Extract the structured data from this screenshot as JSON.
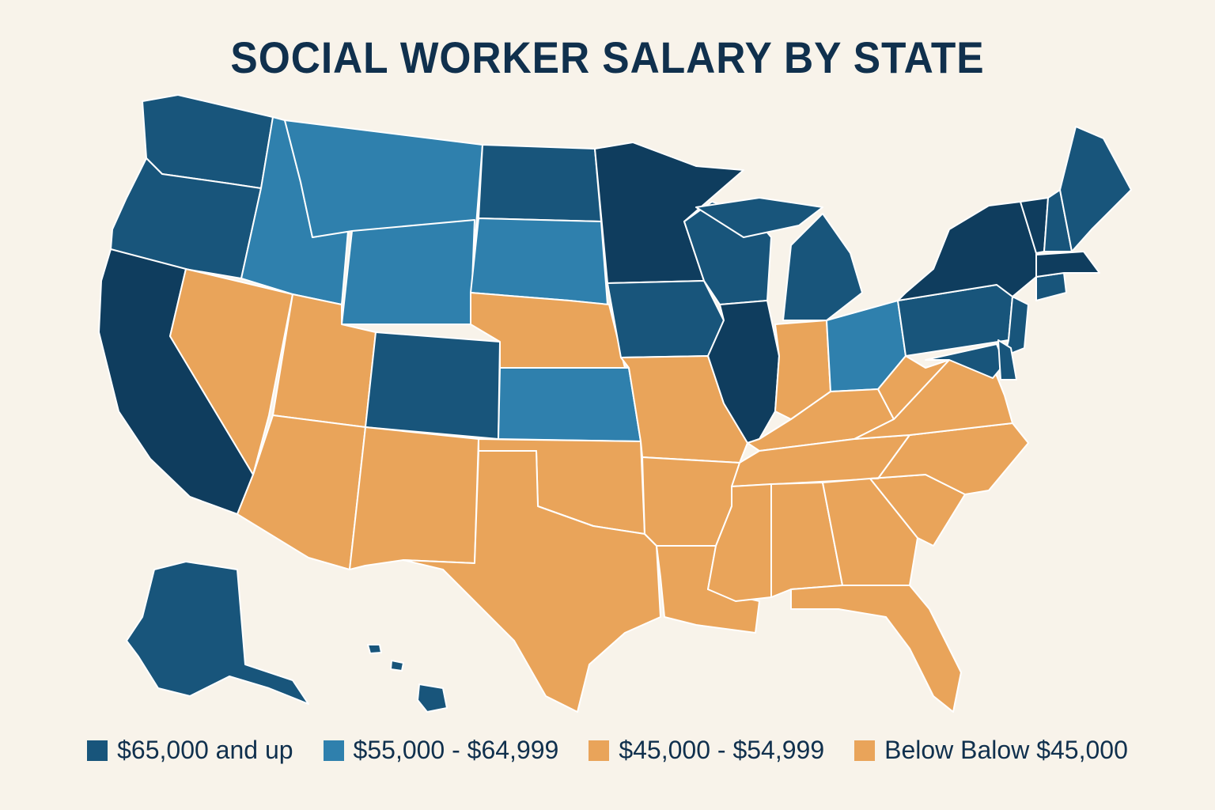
{
  "title": "SOCIAL WORKER SALARY BY STATE",
  "colors": {
    "background": "#f8f3ea",
    "tier_65k_plus": "#18557b",
    "tier_65k_plus_dark": "#0f3d5e",
    "tier_55k_65k": "#2f80ad",
    "tier_45k_55k": "#e9a45a",
    "tier_below_45k": "#e9a45a"
  },
  "legend": [
    {
      "label": "$65,000 and up",
      "color": "#18557b"
    },
    {
      "label": "$55,000 - $64,999",
      "color": "#2f80ad"
    },
    {
      "label": "$45,000 - $54,999",
      "color": "#e9a45a"
    },
    {
      "label": "Below Balow $45,000",
      "color": "#e9a45a"
    }
  ],
  "states": [
    {
      "code": "WA",
      "tier": "$65,000 and up"
    },
    {
      "code": "OR",
      "tier": "$65,000 and up"
    },
    {
      "code": "CA",
      "tier": "$65,000 and up"
    },
    {
      "code": "ID",
      "tier": "$55,000 - $64,999"
    },
    {
      "code": "MT",
      "tier": "$55,000 - $64,999"
    },
    {
      "code": "WY",
      "tier": "$55,000 - $64,999"
    },
    {
      "code": "ND",
      "tier": "$65,000 and up"
    },
    {
      "code": "SD",
      "tier": "$55,000 - $64,999"
    },
    {
      "code": "NE",
      "tier": "$45,000 - $54,999"
    },
    {
      "code": "KS",
      "tier": "$55,000 - $64,999"
    },
    {
      "code": "NV",
      "tier": "$45,000 - $54,999"
    },
    {
      "code": "UT",
      "tier": "$45,000 - $54,999"
    },
    {
      "code": "CO",
      "tier": "$65,000 and up"
    },
    {
      "code": "AZ",
      "tier": "$45,000 - $54,999"
    },
    {
      "code": "NM",
      "tier": "$45,000 - $54,999"
    },
    {
      "code": "TX",
      "tier": "$45,000 - $54,999"
    },
    {
      "code": "OK",
      "tier": "$45,000 - $54,999"
    },
    {
      "code": "MN",
      "tier": "$65,000 and up"
    },
    {
      "code": "IA",
      "tier": "$65,000 and up"
    },
    {
      "code": "MO",
      "tier": "$45,000 - $54,999"
    },
    {
      "code": "AR",
      "tier": "$45,000 - $54,999"
    },
    {
      "code": "LA",
      "tier": "$45,000 - $54,999"
    },
    {
      "code": "WI",
      "tier": "$65,000 and up"
    },
    {
      "code": "IL",
      "tier": "$65,000 and up"
    },
    {
      "code": "MI",
      "tier": "$65,000 and up"
    },
    {
      "code": "IN",
      "tier": "$45,000 - $54,999"
    },
    {
      "code": "OH",
      "tier": "$55,000 - $64,999"
    },
    {
      "code": "KY",
      "tier": "$45,000 - $54,999"
    },
    {
      "code": "TN",
      "tier": "$45,000 - $54,999"
    },
    {
      "code": "MS",
      "tier": "$45,000 - $54,999"
    },
    {
      "code": "AL",
      "tier": "$45,000 - $54,999"
    },
    {
      "code": "GA",
      "tier": "$45,000 - $54,999"
    },
    {
      "code": "FL",
      "tier": "$45,000 - $54,999"
    },
    {
      "code": "SC",
      "tier": "$45,000 - $54,999"
    },
    {
      "code": "NC",
      "tier": "$45,000 - $54,999"
    },
    {
      "code": "VA",
      "tier": "$45,000 - $54,999"
    },
    {
      "code": "WV",
      "tier": "$45,000 - $54,999"
    },
    {
      "code": "PA",
      "tier": "$65,000 and up"
    },
    {
      "code": "NY",
      "tier": "$65,000 and up"
    },
    {
      "code": "NJ",
      "tier": "$65,000 and up"
    },
    {
      "code": "MD",
      "tier": "$65,000 and up"
    },
    {
      "code": "DE",
      "tier": "$65,000 and up"
    },
    {
      "code": "CT",
      "tier": "$65,000 and up"
    },
    {
      "code": "MA",
      "tier": "$65,000 and up"
    },
    {
      "code": "VT",
      "tier": "$65,000 and up"
    },
    {
      "code": "NH",
      "tier": "$65,000 and up"
    },
    {
      "code": "ME",
      "tier": "$65,000 and up"
    },
    {
      "code": "AK",
      "tier": "$65,000 and up"
    },
    {
      "code": "HI",
      "tier": "$65,000 and up"
    }
  ]
}
